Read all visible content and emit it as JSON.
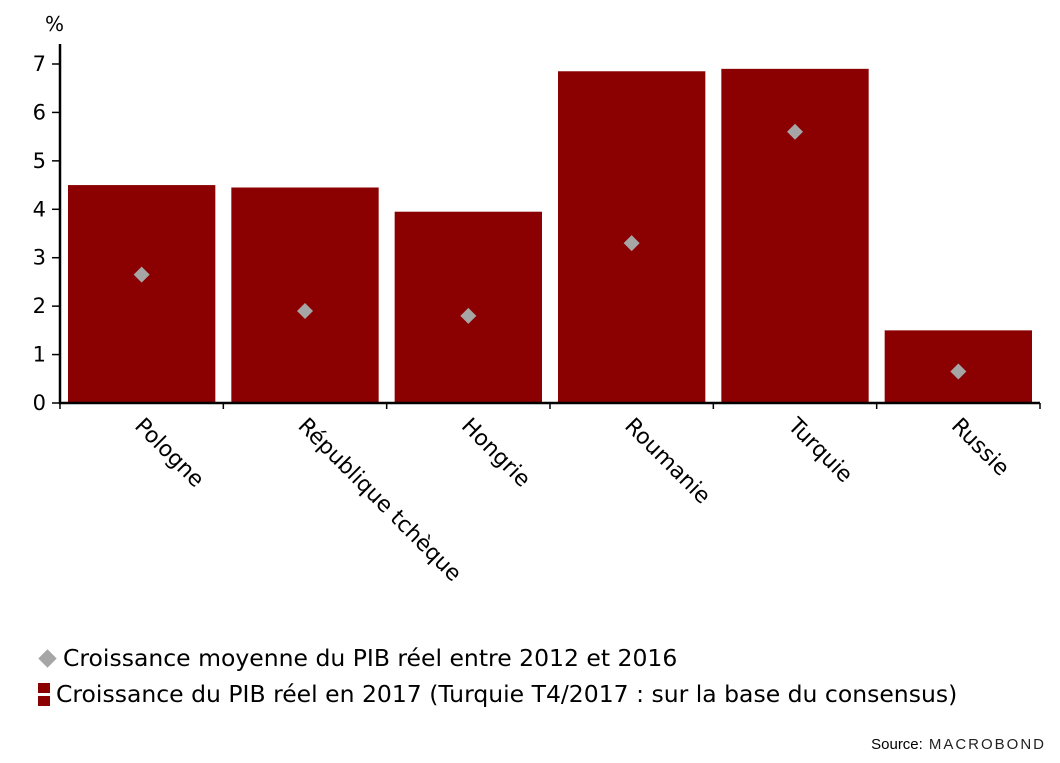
{
  "chart_data": {
    "type": "bar",
    "ylabel": "%",
    "ylim": [
      0,
      7
    ],
    "yticks": [
      "0",
      "1",
      "2",
      "3",
      "4",
      "5",
      "6",
      "7"
    ],
    "categories": [
      "Pologne",
      "République tchèque",
      "Hongrie",
      "Roumanie",
      "Turquie",
      "Russie"
    ],
    "series": [
      {
        "name": "Croissance du PIB réel en 2017 (Turquie T4/2017 : sur la base du consensus)",
        "kind": "bar",
        "color": "#8b0000",
        "values": [
          4.5,
          4.45,
          3.95,
          6.85,
          6.9,
          1.5
        ]
      },
      {
        "name": "Croissance moyenne du PIB réel entre 2012 et 2016",
        "kind": "marker",
        "marker": "diamond",
        "color": "#a6a6a6",
        "values": [
          2.65,
          1.9,
          1.8,
          3.3,
          5.6,
          0.65
        ]
      }
    ],
    "grid": false,
    "legend_position": "bottom"
  },
  "source": {
    "label": "Source:",
    "brand": "MACROBOND"
  }
}
